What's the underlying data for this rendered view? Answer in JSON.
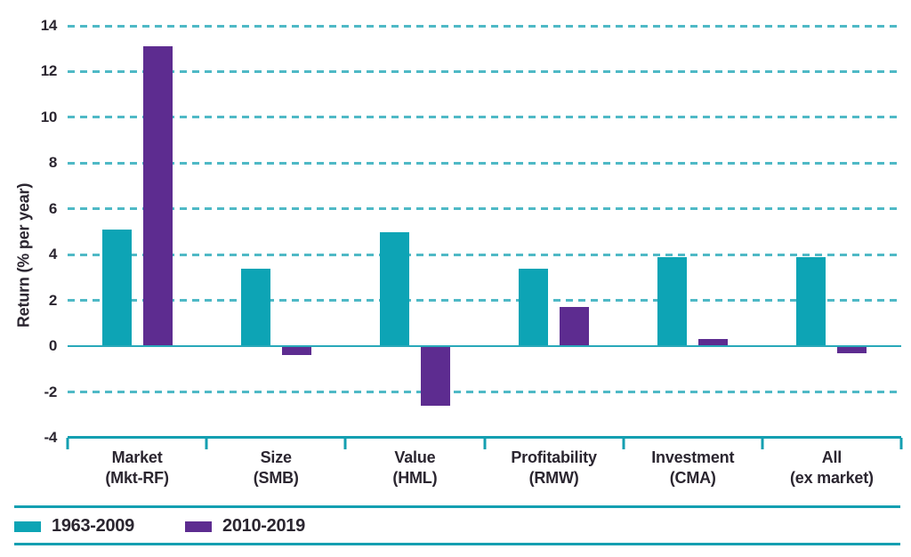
{
  "chart_data": {
    "type": "bar",
    "title": "",
    "ylabel": "Return (% per year)",
    "xlabel": "",
    "ylim": [
      -4,
      14
    ],
    "yticks": [
      14,
      12,
      10,
      8,
      6,
      4,
      2,
      0,
      -2,
      -4
    ],
    "grid": "horizontal dashed, zero line solid, legend bottom-left between rules",
    "categories": [
      {
        "line1": "Market",
        "line2": "(Mkt-RF)"
      },
      {
        "line1": "Size",
        "line2": "(SMB)"
      },
      {
        "line1": "Value",
        "line2": "(HML)"
      },
      {
        "line1": "Profitability",
        "line2": "(RMW)"
      },
      {
        "line1": "Investment",
        "line2": "(CMA)"
      },
      {
        "line1": "All",
        "line2": "(ex market)"
      }
    ],
    "series": [
      {
        "name": "1963-2009",
        "color": "#0da4b5",
        "values": [
          5.1,
          3.4,
          5.0,
          3.4,
          3.9,
          3.9
        ]
      },
      {
        "name": "2010-2019",
        "color": "#5d2c90",
        "values": [
          13.1,
          -0.4,
          -2.6,
          1.7,
          0.3,
          -0.3
        ]
      }
    ],
    "colors": {
      "teal_series": "#0da4b5",
      "purple_series": "#5d2c90",
      "gridline": "#4fb9c6",
      "axis": "#149fb1",
      "text": "#2b2630",
      "background": "#ffffff"
    }
  }
}
